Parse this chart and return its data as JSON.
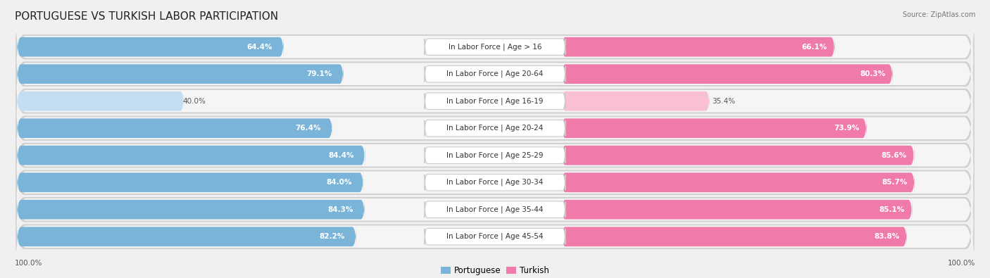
{
  "title": "PORTUGUESE VS TURKISH LABOR PARTICIPATION",
  "source": "Source: ZipAtlas.com",
  "categories": [
    "In Labor Force | Age > 16",
    "In Labor Force | Age 20-64",
    "In Labor Force | Age 16-19",
    "In Labor Force | Age 20-24",
    "In Labor Force | Age 25-29",
    "In Labor Force | Age 30-34",
    "In Labor Force | Age 35-44",
    "In Labor Force | Age 45-54"
  ],
  "portuguese": [
    64.4,
    79.1,
    40.0,
    76.4,
    84.4,
    84.0,
    84.3,
    82.2
  ],
  "turkish": [
    66.1,
    80.3,
    35.4,
    73.9,
    85.6,
    85.7,
    85.1,
    83.8
  ],
  "portuguese_color": "#7ab4d8",
  "portuguese_color_light": "#c5ddf0",
  "turkish_color": "#f07aaa",
  "turkish_color_light": "#f9c0d5",
  "bg_color": "#f0f0f0",
  "row_bg_color": "#e8e8e8",
  "row_inner_color": "#f5f5f5",
  "label_bg_color": "#ffffff",
  "title_fontsize": 11,
  "label_fontsize": 7.5,
  "value_fontsize": 7.5,
  "legend_fontsize": 8.5,
  "footer_fontsize": 7.5,
  "max_val": 100.0
}
